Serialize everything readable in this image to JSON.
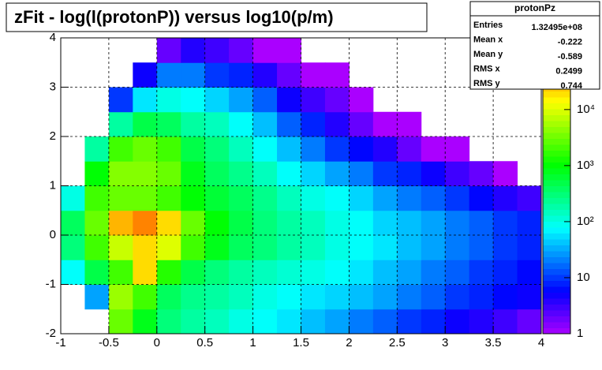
{
  "chart_data": {
    "type": "heatmap",
    "title": "zFit - log(l(protonP)) versus log10(p/m)",
    "xbins": [
      -1,
      -0.75,
      -0.5,
      -0.25,
      0,
      0.25,
      0.5,
      0.75,
      1,
      1.25,
      1.5,
      1.75,
      2,
      2.25,
      2.5,
      2.75,
      3,
      3.25,
      3.5,
      3.75,
      4
    ],
    "ybins": [
      -2,
      -1.5,
      -1,
      -0.5,
      0,
      0.5,
      1,
      1.5,
      2,
      2.5,
      3,
      3.5,
      4
    ],
    "z": [
      [
        0,
        0,
        3000,
        800,
        300,
        200,
        150,
        100,
        80,
        60,
        40,
        30,
        20,
        15,
        10,
        8,
        5,
        4,
        3,
        2
      ],
      [
        0,
        30,
        5000,
        2000,
        400,
        250,
        200,
        150,
        100,
        80,
        60,
        50,
        40,
        30,
        20,
        15,
        10,
        8,
        6,
        5
      ],
      [
        80,
        500,
        2000,
        20000,
        1500,
        500,
        300,
        200,
        150,
        120,
        100,
        80,
        60,
        40,
        30,
        20,
        15,
        10,
        8,
        6
      ],
      [
        300,
        2000,
        8000,
        20000,
        10000,
        2000,
        800,
        400,
        300,
        200,
        150,
        100,
        80,
        60,
        40,
        30,
        20,
        15,
        10,
        8
      ],
      [
        400,
        3000,
        30000,
        50000,
        20000,
        3000,
        1000,
        500,
        300,
        200,
        150,
        100,
        80,
        50,
        40,
        30,
        20,
        15,
        10,
        8
      ],
      [
        100,
        2000,
        3000,
        3000,
        2000,
        1000,
        600,
        400,
        250,
        150,
        100,
        80,
        50,
        30,
        20,
        15,
        10,
        6,
        4,
        3
      ],
      [
        0,
        1000,
        4000,
        4000,
        3000,
        800,
        400,
        250,
        150,
        80,
        50,
        30,
        20,
        10,
        8,
        5,
        3,
        2,
        1,
        0
      ],
      [
        0,
        200,
        2000,
        3000,
        2000,
        500,
        300,
        150,
        80,
        40,
        20,
        10,
        6,
        4,
        2,
        1,
        1,
        0,
        0,
        0
      ],
      [
        0,
        0,
        200,
        500,
        400,
        200,
        150,
        80,
        40,
        15,
        8,
        4,
        2,
        1,
        1,
        0,
        0,
        0,
        0,
        0
      ],
      [
        0,
        0,
        10,
        60,
        100,
        80,
        50,
        30,
        15,
        5,
        3,
        2,
        1,
        0,
        0,
        0,
        0,
        0,
        0,
        0
      ],
      [
        0,
        0,
        0,
        5,
        20,
        20,
        10,
        8,
        4,
        2,
        1,
        1,
        0,
        0,
        0,
        0,
        0,
        0,
        0,
        0
      ],
      [
        0,
        0,
        0,
        0,
        2,
        4,
        3,
        2,
        1,
        1,
        0,
        0,
        0,
        0,
        0,
        0,
        0,
        0,
        0,
        0
      ]
    ],
    "xlim": [
      -1,
      4
    ],
    "ylim": [
      -2,
      4
    ],
    "xticks": [
      -1,
      -0.5,
      0,
      0.5,
      1,
      1.5,
      2,
      2.5,
      3,
      3.5,
      4
    ],
    "yticks": [
      -2,
      -1,
      0,
      1,
      2,
      3,
      4
    ],
    "zlim": [
      1,
      190000
    ],
    "zlog": true,
    "zticks": [
      1,
      10,
      {
        "value": 100,
        "label": "10²"
      },
      {
        "value": 1000,
        "label": "10³"
      },
      {
        "value": 10000,
        "label": "10⁴"
      }
    ],
    "colormap": "rainbow",
    "grid": true,
    "stats": {
      "title": "protonPz",
      "rows": [
        [
          "Entries",
          "1.32495e+08"
        ],
        [
          "Mean x",
          "-0.222"
        ],
        [
          "Mean y",
          "-0.589"
        ],
        [
          "RMS x",
          "0.2499"
        ],
        [
          "RMS y",
          "0.744"
        ]
      ]
    }
  }
}
